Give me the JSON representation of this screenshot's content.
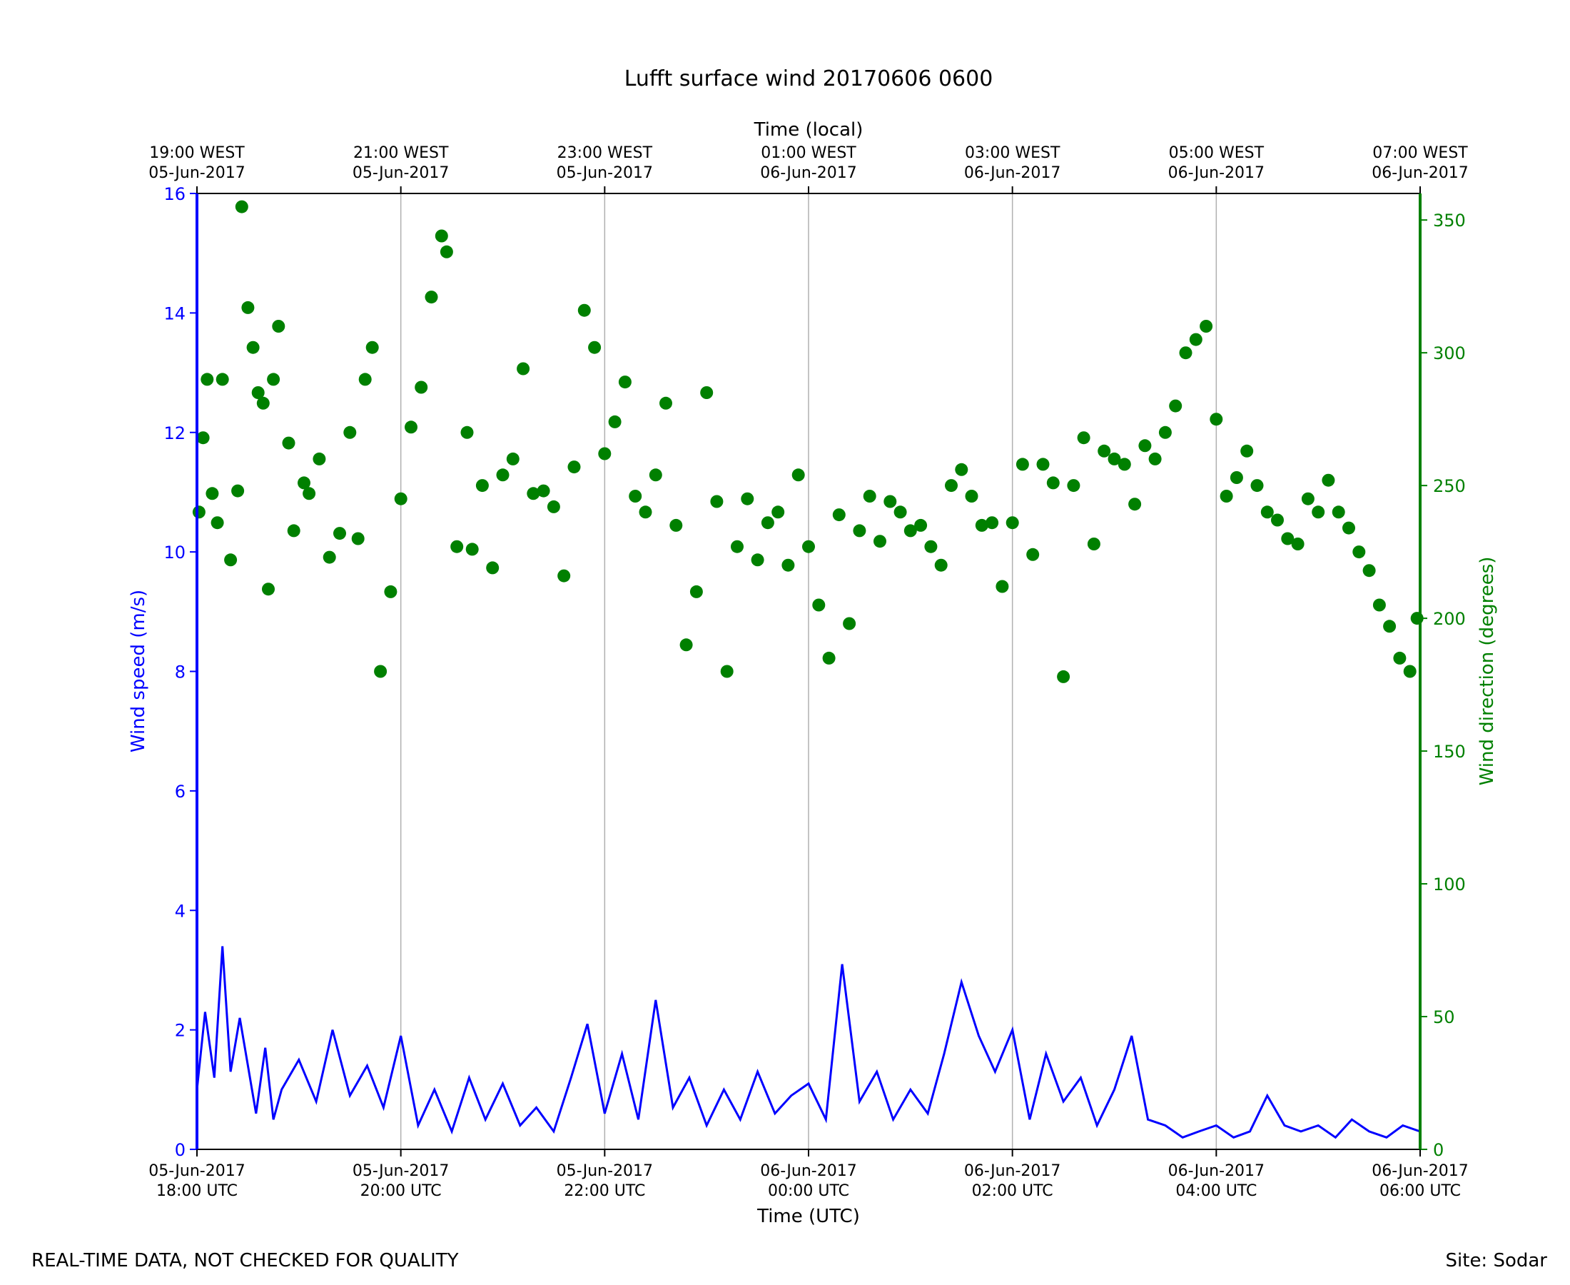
{
  "chart_data": {
    "type": "line+scatter",
    "title": "Lufft surface wind 20170606 0600",
    "top_xlabel": "Time (local)",
    "xlabel": "Time (UTC)",
    "ylabel_left": "Wind speed (m/s)",
    "ylabel_right": "Wind direction (degrees)",
    "ylim_left": [
      0,
      16
    ],
    "ylim_right": [
      0,
      360
    ],
    "left_ticks": [
      "0",
      "2",
      "4",
      "6",
      "8",
      "10",
      "12",
      "14",
      "16"
    ],
    "right_ticks": [
      "0",
      "50",
      "100",
      "150",
      "200",
      "250",
      "300",
      "350"
    ],
    "xlim_hours_utc": [
      "05-Jun-2017 18:00",
      "06-Jun-2017 06:00"
    ],
    "bottom_ticks": [
      {
        "date": "05-Jun-2017",
        "time": "18:00 UTC"
      },
      {
        "date": "05-Jun-2017",
        "time": "20:00 UTC"
      },
      {
        "date": "05-Jun-2017",
        "time": "22:00 UTC"
      },
      {
        "date": "06-Jun-2017",
        "time": "00:00 UTC"
      },
      {
        "date": "06-Jun-2017",
        "time": "02:00 UTC"
      },
      {
        "date": "06-Jun-2017",
        "time": "04:00 UTC"
      },
      {
        "date": "06-Jun-2017",
        "time": "06:00 UTC"
      }
    ],
    "top_ticks": [
      {
        "time": "19:00 WEST",
        "date": "05-Jun-2017"
      },
      {
        "time": "21:00 WEST",
        "date": "05-Jun-2017"
      },
      {
        "time": "23:00 WEST",
        "date": "05-Jun-2017"
      },
      {
        "time": "01:00 WEST",
        "date": "06-Jun-2017"
      },
      {
        "time": "03:00 WEST",
        "date": "06-Jun-2017"
      },
      {
        "time": "05:00 WEST",
        "date": "06-Jun-2017"
      },
      {
        "time": "07:00 WEST",
        "date": "06-Jun-2017"
      }
    ],
    "grid": "vertical lines at bottom ticks",
    "colors": {
      "speed": "#0000ff",
      "direction": "#008000",
      "grid": "#b0b0b0"
    },
    "series": [
      {
        "name": "Wind speed (m/s)",
        "style": "line",
        "t_hours": [
          0.0,
          0.08,
          0.17,
          0.25,
          0.33,
          0.42,
          0.5,
          0.58,
          0.67,
          0.75,
          0.83,
          1.0,
          1.17,
          1.33,
          1.5,
          1.67,
          1.83,
          2.0,
          2.17,
          2.33,
          2.5,
          2.67,
          2.83,
          3.0,
          3.17,
          3.33,
          3.5,
          3.67,
          3.83,
          4.0,
          4.17,
          4.33,
          4.5,
          4.67,
          4.83,
          5.0,
          5.17,
          5.33,
          5.5,
          5.67,
          5.83,
          6.0,
          6.17,
          6.33,
          6.5,
          6.67,
          6.83,
          7.0,
          7.17,
          7.33,
          7.5,
          7.67,
          7.83,
          8.0,
          8.17,
          8.33,
          8.5,
          8.67,
          8.83,
          9.0,
          9.17,
          9.33,
          9.5,
          9.67,
          9.83,
          10.0,
          10.17,
          10.33,
          10.5,
          10.67,
          10.83,
          11.0,
          11.17,
          11.33,
          11.5,
          11.67,
          11.83,
          12.0
        ],
        "values": [
          1.0,
          2.3,
          1.2,
          3.4,
          1.3,
          2.2,
          1.4,
          0.6,
          1.7,
          0.5,
          1.0,
          1.5,
          0.8,
          2.0,
          0.9,
          1.4,
          0.7,
          1.9,
          0.4,
          1.0,
          0.3,
          1.2,
          0.5,
          1.1,
          0.4,
          0.7,
          0.3,
          1.2,
          2.1,
          0.6,
          1.6,
          0.5,
          2.5,
          0.7,
          1.2,
          0.4,
          1.0,
          0.5,
          1.3,
          0.6,
          0.9,
          1.1,
          0.5,
          3.1,
          0.8,
          1.3,
          0.5,
          1.0,
          0.6,
          1.6,
          2.8,
          1.9,
          1.3,
          2.0,
          0.5,
          1.6,
          0.8,
          1.2,
          0.4,
          1.0,
          1.9,
          0.5,
          0.4,
          0.2,
          0.3,
          0.4,
          0.2,
          0.3,
          0.9,
          0.4,
          0.3,
          0.4,
          0.2,
          0.5,
          0.3,
          0.2,
          0.4,
          0.3
        ]
      },
      {
        "name": "Wind direction (degrees)",
        "style": "scatter",
        "t_hours": [
          0.02,
          0.06,
          0.1,
          0.15,
          0.2,
          0.25,
          0.33,
          0.4,
          0.44,
          0.5,
          0.55,
          0.6,
          0.65,
          0.7,
          0.75,
          0.8,
          0.9,
          0.95,
          1.05,
          1.1,
          1.2,
          1.3,
          1.4,
          1.5,
          1.58,
          1.65,
          1.72,
          1.8,
          1.9,
          2.0,
          2.1,
          2.2,
          2.3,
          2.4,
          2.45,
          2.55,
          2.65,
          2.7,
          2.8,
          2.9,
          3.0,
          3.1,
          3.2,
          3.3,
          3.4,
          3.5,
          3.6,
          3.7,
          3.8,
          3.9,
          4.0,
          4.1,
          4.2,
          4.3,
          4.4,
          4.5,
          4.6,
          4.7,
          4.8,
          4.9,
          5.0,
          5.1,
          5.2,
          5.3,
          5.4,
          5.5,
          5.6,
          5.7,
          5.8,
          5.9,
          6.0,
          6.1,
          6.2,
          6.3,
          6.4,
          6.5,
          6.6,
          6.7,
          6.8,
          6.9,
          7.0,
          7.1,
          7.2,
          7.3,
          7.4,
          7.5,
          7.6,
          7.7,
          7.8,
          7.9,
          8.0,
          8.1,
          8.2,
          8.3,
          8.4,
          8.5,
          8.6,
          8.7,
          8.8,
          8.9,
          9.0,
          9.1,
          9.2,
          9.3,
          9.4,
          9.5,
          9.6,
          9.7,
          9.8,
          9.9,
          10.0,
          10.1,
          10.2,
          10.3,
          10.4,
          10.5,
          10.6,
          10.7,
          10.8,
          10.9,
          11.0,
          11.1,
          11.2,
          11.3,
          11.4,
          11.5,
          11.6,
          11.7,
          11.8,
          11.9,
          11.97
        ],
        "values": [
          240,
          268,
          290,
          247,
          236,
          290,
          222,
          248,
          355,
          317,
          302,
          285,
          281,
          211,
          290,
          310,
          266,
          233,
          251,
          247,
          260,
          223,
          232,
          270,
          230,
          290,
          302,
          180,
          210,
          245,
          272,
          287,
          321,
          344,
          338,
          227,
          270,
          226,
          250,
          219,
          254,
          260,
          294,
          247,
          248,
          242,
          216,
          257,
          316,
          302,
          262,
          274,
          289,
          246,
          240,
          254,
          281,
          235,
          190,
          210,
          285,
          244,
          180,
          227,
          245,
          222,
          236,
          240,
          220,
          254,
          227,
          205,
          185,
          239,
          198,
          233,
          246,
          229,
          244,
          240,
          233,
          235,
          227,
          220,
          250,
          256,
          246,
          235,
          236,
          212,
          236,
          258,
          224,
          258,
          251,
          178,
          250,
          268,
          228,
          263,
          260,
          258,
          243,
          265,
          260,
          270,
          280,
          300,
          305,
          310,
          275,
          246,
          253,
          263,
          250,
          240,
          237,
          230,
          228,
          245,
          240,
          252,
          240,
          234,
          225,
          218,
          205,
          197,
          185,
          180,
          200
        ]
      }
    ]
  },
  "footer_left": "REAL-TIME DATA, NOT CHECKED FOR QUALITY",
  "footer_right": "Site: Sodar"
}
